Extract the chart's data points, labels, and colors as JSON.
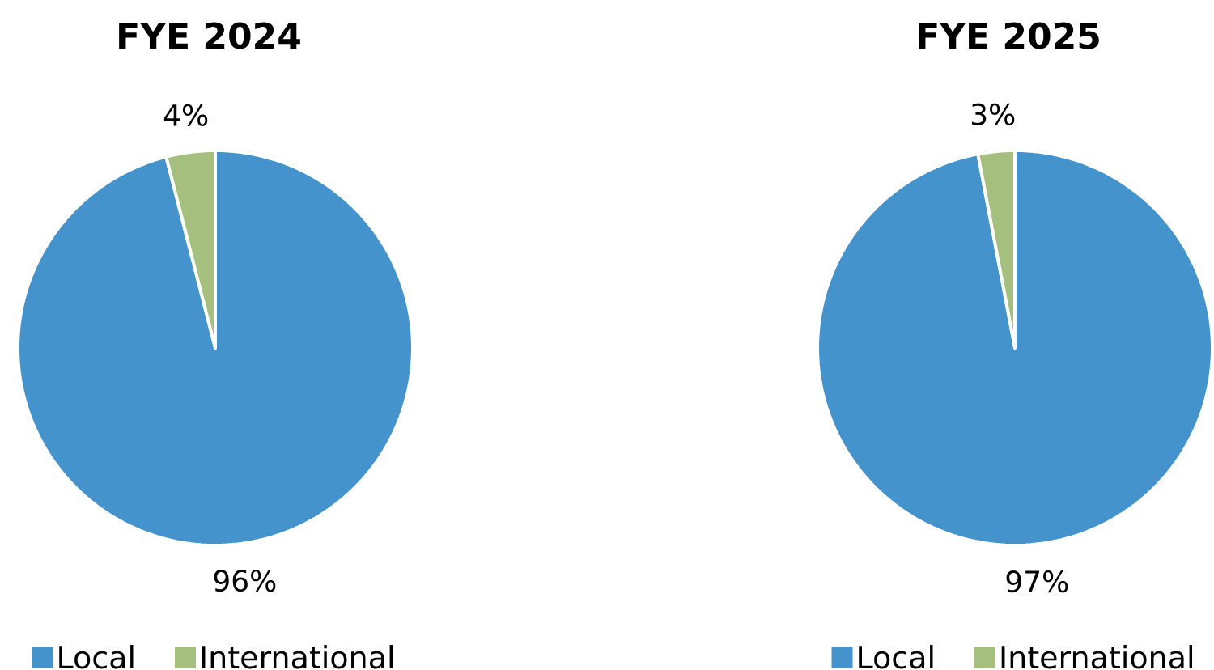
{
  "chart_data": [
    {
      "type": "pie",
      "title": "FYE 2024",
      "categories": [
        "Local",
        "International"
      ],
      "values": [
        96,
        4
      ],
      "colors": [
        "#4493cd",
        "#a4bf7e"
      ],
      "value_labels": [
        "96%",
        "4%"
      ],
      "legend": "bottom"
    },
    {
      "type": "pie",
      "title": "FYE 2025",
      "categories": [
        "Local",
        "International"
      ],
      "values": [
        97,
        3
      ],
      "colors": [
        "#4493cd",
        "#a4bf7e"
      ],
      "value_labels": [
        "97%",
        "3%"
      ],
      "legend": "bottom"
    }
  ]
}
